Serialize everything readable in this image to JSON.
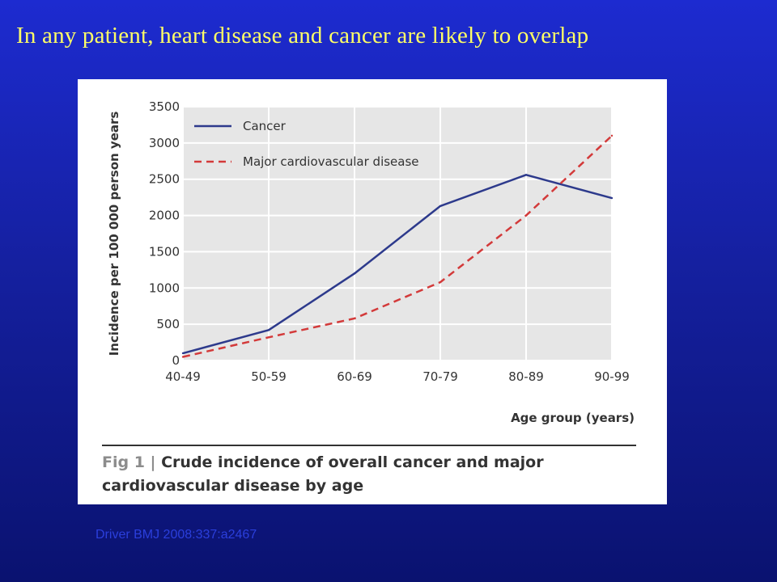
{
  "slide": {
    "title": "In any patient, heart disease and cancer are likely to overlap",
    "citation": "Driver BMJ 2008:337:a2467"
  },
  "caption": {
    "fig_label": "Fig 1 |",
    "text": "Crude incidence of overall cancer and major cardiovascular disease by age"
  },
  "chart_data": {
    "type": "line",
    "ylabel": "Incidence per 100 000 person years",
    "xlabel": "Age group (years)",
    "categories": [
      "40-49",
      "50-59",
      "60-69",
      "70-79",
      "80-89",
      "90-99"
    ],
    "ylim": [
      0,
      3500
    ],
    "yticks": [
      "0",
      "500",
      "1000",
      "1500",
      "2000",
      "2500",
      "3000",
      "3500"
    ],
    "grid": true,
    "legend_position": "top-left",
    "series": [
      {
        "name": "Cancer",
        "values": [
          100,
          420,
          1200,
          2130,
          2560,
          2240
        ],
        "color": "#2d3a8c",
        "style": "solid"
      },
      {
        "name": "Major cardiovascular disease",
        "values": [
          50,
          320,
          580,
          1080,
          2000,
          3100
        ],
        "color": "#d33a3a",
        "style": "dashed"
      }
    ]
  }
}
